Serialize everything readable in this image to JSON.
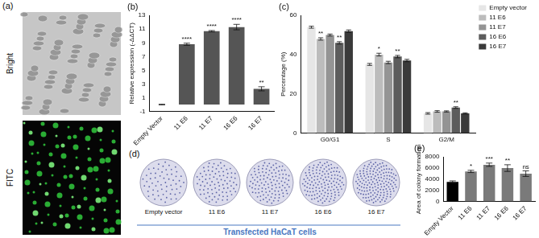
{
  "chart_data": [
    {
      "type": "bar",
      "title": "(b)",
      "y_label": "Relative expression (-ΔΔCT)",
      "categories": [
        "Empty Vector",
        "11 E6",
        "11 E7",
        "16 E6",
        "16 E7"
      ],
      "values": [
        0,
        8.8,
        10.7,
        11.3,
        2.3
      ],
      "errors": [
        0.05,
        0.15,
        0.1,
        0.4,
        0.3
      ],
      "annotations": [
        null,
        "****",
        "****",
        "****",
        "**"
      ],
      "color": "#555555",
      "ylim": [
        -1,
        13
      ],
      "yticks": [
        -1,
        1,
        3,
        5,
        7,
        9,
        11,
        13
      ],
      "grid": false
    },
    {
      "type": "bar",
      "title": "(c)",
      "y_label": "Percentage (%)",
      "categories": [
        "G0/G1",
        "S",
        "G2/M"
      ],
      "series": [
        {
          "name": "Empty vector",
          "color": "#e6e6e6",
          "values": [
            54,
            35,
            10
          ],
          "errors": [
            0.5,
            0.5,
            0.4
          ],
          "annotations": [
            null,
            null,
            null
          ]
        },
        {
          "name": "11 E6",
          "color": "#bcbcbc",
          "values": [
            48,
            40,
            11
          ],
          "errors": [
            0.6,
            0.7,
            0.4
          ],
          "annotations": [
            "**",
            "*",
            null
          ]
        },
        {
          "name": "11 E7",
          "color": "#949494",
          "values": [
            50,
            36,
            11
          ],
          "errors": [
            0.5,
            0.6,
            0.3
          ],
          "annotations": [
            null,
            null,
            null
          ]
        },
        {
          "name": "16 E6",
          "color": "#5c5c5c",
          "values": [
            46,
            39,
            13
          ],
          "errors": [
            0.6,
            0.6,
            0.4
          ],
          "annotations": [
            "**",
            "**",
            "**"
          ]
        },
        {
          "name": "16 E7",
          "color": "#3a3a3a",
          "values": [
            52,
            37,
            10
          ],
          "errors": [
            0.6,
            0.6,
            0.3
          ],
          "annotations": [
            null,
            null,
            null
          ]
        }
      ],
      "ylim": [
        0,
        60
      ],
      "yticks": [
        0,
        20,
        40,
        60
      ],
      "grid": false,
      "legend": "top right"
    },
    {
      "type": "bar",
      "title": "(e)",
      "y_label": "Area of colony formation",
      "categories": [
        "Empty Vector",
        "11 E6",
        "11 E7",
        "16 E6",
        "16 E7"
      ],
      "values": [
        3500,
        5400,
        6600,
        6000,
        5000
      ],
      "errors": [
        200,
        200,
        300,
        600,
        500
      ],
      "annotations": [
        null,
        "*",
        "***",
        "**",
        "ns"
      ],
      "colors": [
        "#000000",
        "#7a7a7a",
        "#7a7a7a",
        "#7a7a7a",
        "#7a7a7a"
      ],
      "ylim": [
        0,
        8000
      ],
      "yticks": [
        0,
        2000,
        4000,
        6000,
        8000
      ],
      "grid": false
    }
  ],
  "panels": {
    "a": {
      "title": "(a)",
      "images": [
        "Bright",
        "FITC"
      ]
    },
    "d": {
      "title": "(d)",
      "plates": [
        "Empty vector",
        "11 E6",
        "11 E7",
        "16 E6",
        "16 E7"
      ],
      "caption": "Transfected HaCaT cells"
    }
  }
}
